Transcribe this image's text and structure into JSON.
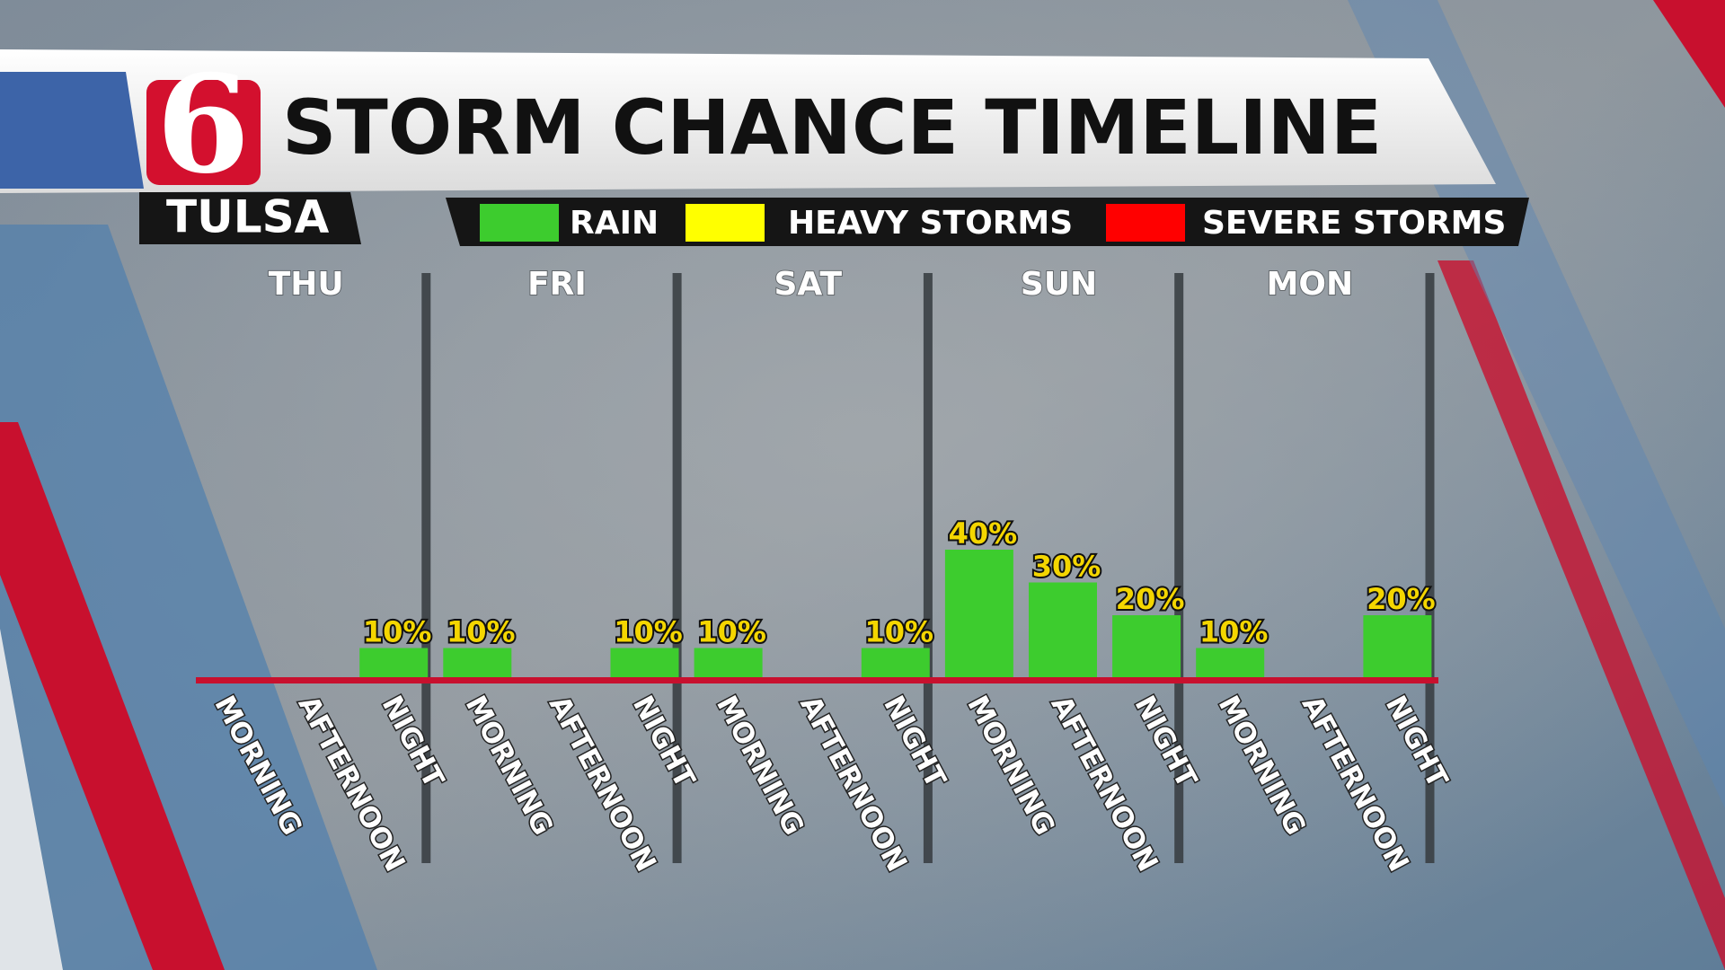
{
  "chart_data": {
    "type": "bar",
    "title": "STORM CHANCE TIMELINE",
    "logo": "6",
    "subtitle": "TULSA",
    "days": [
      "THU",
      "FRI",
      "SAT",
      "SUN",
      "MON"
    ],
    "categories": [
      "MORNING",
      "AFTERNOON",
      "NIGHT",
      "MORNING",
      "AFTERNOON",
      "NIGHT",
      "MORNING",
      "AFTERNOON",
      "NIGHT",
      "MORNING",
      "AFTERNOON",
      "NIGHT",
      "MORNING",
      "AFTERNOON",
      "NIGHT"
    ],
    "series": [
      {
        "name": "RAIN",
        "color": "#3dcc2e",
        "values": [
          null,
          null,
          10,
          10,
          null,
          10,
          10,
          null,
          10,
          40,
          30,
          20,
          10,
          null,
          20
        ],
        "value_labels": [
          null,
          null,
          "10%",
          "10%",
          null,
          "10%",
          "10%",
          null,
          "10%",
          "40%",
          "30%",
          "20%",
          "10%",
          null,
          "20%"
        ]
      },
      {
        "name": "HEAVY STORMS",
        "color": "#ffff00",
        "values": [
          null,
          null,
          null,
          null,
          null,
          null,
          null,
          null,
          null,
          null,
          null,
          null,
          null,
          null,
          null
        ]
      },
      {
        "name": "SEVERE STORMS",
        "color": "#ff0000",
        "values": [
          null,
          null,
          null,
          null,
          null,
          null,
          null,
          null,
          null,
          null,
          null,
          null,
          null,
          null,
          null
        ]
      }
    ]
  }
}
